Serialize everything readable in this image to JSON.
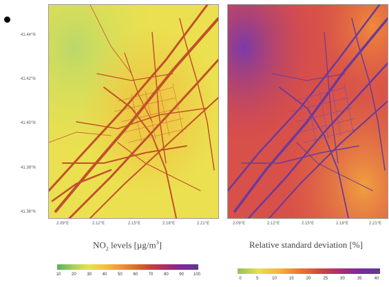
{
  "left_panel": {
    "lat_ticks": [
      "41.44°N",
      "41.42°N",
      "41.40°N",
      "41.38°N",
      "41.36°N"
    ],
    "lon_ticks": [
      "2.09°E",
      "2.12°E",
      "2.15°E",
      "2.18°E",
      "2.21°E"
    ],
    "caption_main": "NO",
    "caption_sub": "2",
    "caption_mid": " levels [µg/m",
    "caption_sup": "3",
    "caption_end": "]",
    "colorbar_ticks": [
      "10",
      "20",
      "30",
      "40",
      "50",
      "60",
      "70",
      "80",
      "90",
      "100"
    ]
  },
  "right_panel": {
    "lon_ticks": [
      "2.09°E",
      "2.12°E",
      "2.15°E",
      "2.18°E",
      "2.21°E"
    ],
    "caption": "Relative standard deviation [%]",
    "colorbar_ticks": [
      "0",
      "5",
      "10",
      "15",
      "20",
      "25",
      "30",
      "35",
      "40"
    ]
  },
  "colors": {
    "road_left": "#c0502a",
    "road_right": "#6a3a9a"
  }
}
